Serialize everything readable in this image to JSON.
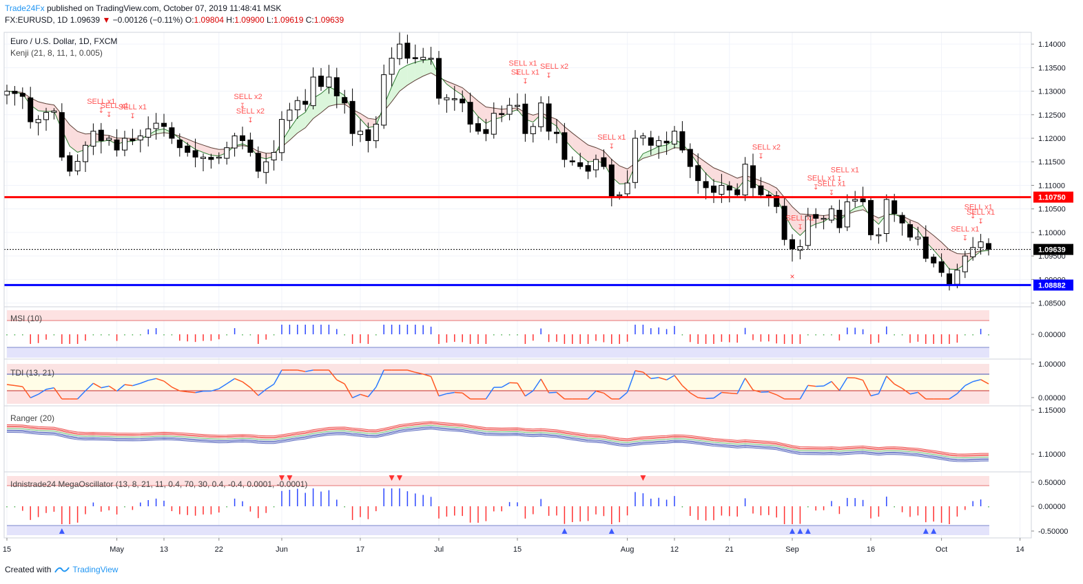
{
  "header": {
    "author": "Trade24Fx",
    "published_text": "published on TradingView.com, October 07, 2019 11:48:41 MSK",
    "symbol_line": "FX:EURUSD, 1D",
    "last": "1.09639",
    "change": "−0.00126 (−0.11%)",
    "o_label": "O:",
    "o_value": "1.09804",
    "h_label": "H:",
    "h_value": "1.09900",
    "l_label": "L:",
    "l_value": "1.09619",
    "c_label": "C:",
    "c_value": "1.09639"
  },
  "main_pane": {
    "title": "Euro / U.S. Dollar, 1D, FXCM",
    "indicator": "Kenji (21, 8, 11, 1, 0.005)",
    "price_ticks": [
      "1.14000",
      "1.13500",
      "1.13000",
      "1.12500",
      "1.12000",
      "1.11500",
      "1.11000",
      "1.10500",
      "1.10000",
      "1.09500",
      "1.09000",
      "1.08500"
    ],
    "red_level": "1.10750",
    "blue_level": "1.08882",
    "last_price": "1.09639"
  },
  "panes": [
    {
      "title": "MSI (10)",
      "ticks": [
        "0.00000"
      ]
    },
    {
      "title": "TDI (13, 21)",
      "ticks": [
        "1.00000",
        "0.00000"
      ]
    },
    {
      "title": "Ranger (20)",
      "ticks": [
        "1.15000",
        "1.10000"
      ]
    },
    {
      "title": "Idnistrade24 MegaOscillator (13, 8, 21, 11, 0.4, 70, 30, 0.4, -0.4, 0.0001, -0.0001)",
      "ticks": [
        "0.50000",
        "0.00000",
        "-0.50000"
      ]
    }
  ],
  "time_axis": [
    "15",
    "May",
    "13",
    "22",
    "Jun",
    "17",
    "Jul",
    "15",
    "Aug",
    "12",
    "21",
    "Sep",
    "16",
    "Oct",
    "14"
  ],
  "signals": [
    "SELL x1",
    "SELL x1",
    "SELL x1",
    "SELL x2",
    "SELL x2",
    "SELL x1",
    "SELL x1",
    "SELL x2",
    "SELL x1",
    "SELL x2",
    "SELL x1",
    "SELL x1",
    "SELL x1",
    "SELL x1",
    "SELL x1",
    "SELL x1",
    "SELL x1"
  ],
  "footer": {
    "created_with": "Created with",
    "brand": "TradingView"
  },
  "colors": {
    "up": "#ffffff",
    "down": "#000000",
    "red_line": "#ff0000",
    "blue_line": "#0000ff",
    "signal": "#ff5252",
    "pane_red_zone": "#fde2e2",
    "pane_blue_zone": "#e3e3fb"
  },
  "chart_data": {
    "type": "candlestick",
    "symbol": "EURUSD",
    "timeframe": "1D",
    "x": [
      "Apr 15",
      "Apr 16",
      "Apr 17",
      "Apr 18",
      "Apr 19",
      "Apr 22",
      "Apr 23",
      "Apr 24",
      "Apr 25",
      "Apr 26",
      "Apr 29",
      "Apr 30",
      "May 1",
      "May 2",
      "May 3",
      "May 6",
      "May 7",
      "May 8",
      "May 9",
      "May 10",
      "May 13",
      "May 14",
      "May 15",
      "May 16",
      "May 17",
      "May 20",
      "May 21",
      "May 22",
      "May 23",
      "May 24",
      "May 27",
      "May 28",
      "May 29",
      "May 30",
      "May 31",
      "Jun 3",
      "Jun 4",
      "Jun 5",
      "Jun 6",
      "Jun 7",
      "Jun 10",
      "Jun 11",
      "Jun 12",
      "Jun 13",
      "Jun 14",
      "Jun 17",
      "Jun 18",
      "Jun 19",
      "Jun 20",
      "Jun 21",
      "Jun 24",
      "Jun 25",
      "Jun 26",
      "Jun 27",
      "Jun 28",
      "Jul 1",
      "Jul 2",
      "Jul 3",
      "Jul 4",
      "Jul 5",
      "Jul 8",
      "Jul 9",
      "Jul 10",
      "Jul 11",
      "Jul 12",
      "Jul 15",
      "Jul 16",
      "Jul 17",
      "Jul 18",
      "Jul 19",
      "Jul 22",
      "Jul 23",
      "Jul 24",
      "Jul 25",
      "Jul 26",
      "Jul 29",
      "Jul 30",
      "Jul 31",
      "Aug 1",
      "Aug 2",
      "Aug 5",
      "Aug 6",
      "Aug 7",
      "Aug 8",
      "Aug 9",
      "Aug 12",
      "Aug 13",
      "Aug 14",
      "Aug 15",
      "Aug 16",
      "Aug 19",
      "Aug 20",
      "Aug 21",
      "Aug 22",
      "Aug 23",
      "Aug 26",
      "Aug 27",
      "Aug 28",
      "Aug 29",
      "Aug 30",
      "Sep 2",
      "Sep 3",
      "Sep 4",
      "Sep 5",
      "Sep 6",
      "Sep 9",
      "Sep 10",
      "Sep 11",
      "Sep 12",
      "Sep 13",
      "Sep 16",
      "Sep 17",
      "Sep 18",
      "Sep 19",
      "Sep 20",
      "Sep 23",
      "Sep 24",
      "Sep 25",
      "Sep 26",
      "Sep 27",
      "Sep 30",
      "Oct 1",
      "Oct 2",
      "Oct 3",
      "Oct 4",
      "Oct 7"
    ],
    "close": [
      1.13,
      1.1295,
      1.1289,
      1.1235,
      1.124,
      1.1255,
      1.1258,
      1.116,
      1.113,
      1.1151,
      1.1185,
      1.1215,
      1.1195,
      1.12,
      1.1175,
      1.12,
      1.1195,
      1.1205,
      1.122,
      1.1232,
      1.1225,
      1.12,
      1.118,
      1.117,
      1.116,
      1.116,
      1.1155,
      1.116,
      1.118,
      1.1205,
      1.1195,
      1.117,
      1.113,
      1.115,
      1.117,
      1.124,
      1.126,
      1.128,
      1.1272,
      1.133,
      1.131,
      1.133,
      1.129,
      1.1275,
      1.121,
      1.1215,
      1.1195,
      1.123,
      1.1335,
      1.137,
      1.14,
      1.137,
      1.137,
      1.1372,
      1.137,
      1.1285,
      1.1286,
      1.1284,
      1.1275,
      1.123,
      1.1215,
      1.121,
      1.1253,
      1.1251,
      1.127,
      1.127,
      1.121,
      1.1225,
      1.1275,
      1.1215,
      1.121,
      1.1155,
      1.115,
      1.114,
      1.113,
      1.1155,
      1.114,
      1.1075,
      1.108,
      1.1105,
      1.12,
      1.1205,
      1.1185,
      1.1195,
      1.119,
      1.1215,
      1.1175,
      1.114,
      1.111,
      1.1095,
      1.1085,
      1.11,
      1.109,
      1.108,
      1.1145,
      1.1095,
      1.108,
      1.1075,
      1.1055,
      1.0985,
      1.0965,
      1.097,
      1.1035,
      1.103,
      1.103,
      1.105,
      1.101,
      1.1065,
      1.107,
      1.1065,
      1.0995,
      1.0995,
      1.107,
      1.104,
      1.102,
      1.099,
      1.099,
      1.0945,
      1.0935,
      1.0915,
      1.089,
      1.092,
      1.095,
      1.0968,
      1.098,
      1.0964
    ],
    "levels": {
      "red_line": 1.1075,
      "blue_line": 1.08882,
      "last": 1.09639
    },
    "panes": [
      {
        "name": "MSI (10)",
        "type": "histogram",
        "ylim": [
          -0.3,
          0.3
        ]
      },
      {
        "name": "TDI (13, 21)",
        "type": "line",
        "ylim": [
          -0.2,
          1.2
        ]
      },
      {
        "name": "Ranger (20)",
        "type": "band",
        "ylim": [
          1.08,
          1.16
        ]
      },
      {
        "name": "Idnistrade24 MegaOscillator",
        "type": "histogram",
        "ylim": [
          -0.6,
          0.6
        ]
      }
    ]
  }
}
